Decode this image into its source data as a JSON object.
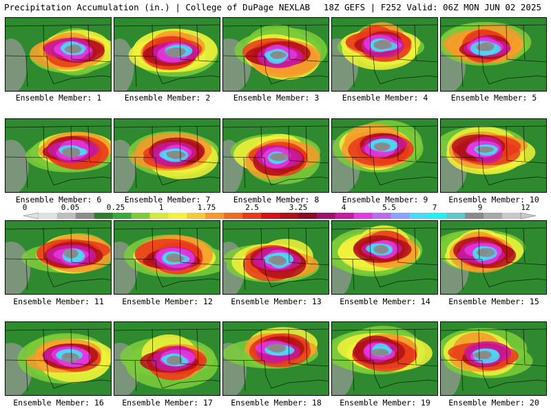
{
  "header": {
    "left": "Precipitation Accumulation (in.) | College of DuPage NEXLAB",
    "right": "18Z GEFS | F252 Valid: 06Z MON JUN 02 2025"
  },
  "panels": [
    {
      "label": "Ensemble Member: 1"
    },
    {
      "label": "Ensemble Member: 2"
    },
    {
      "label": "Ensemble Member: 3"
    },
    {
      "label": "Ensemble Member: 4"
    },
    {
      "label": "Ensemble Member: 5"
    },
    {
      "label": "Ensemble Member: 6"
    },
    {
      "label": "Ensemble Member: 7"
    },
    {
      "label": "Ensemble Member: 8"
    },
    {
      "label": "Ensemble Member: 9"
    },
    {
      "label": "Ensemble Member: 10"
    },
    {
      "label": "Ensemble Member: 11"
    },
    {
      "label": "Ensemble Member: 12"
    },
    {
      "label": "Ensemble Member: 13"
    },
    {
      "label": "Ensemble Member: 14"
    },
    {
      "label": "Ensemble Member: 15"
    },
    {
      "label": "Ensemble Member: 16"
    },
    {
      "label": "Ensemble Member: 17"
    },
    {
      "label": "Ensemble Member: 18"
    },
    {
      "label": "Ensemble Member: 19"
    },
    {
      "label": "Ensemble Member: 20"
    }
  ],
  "legend": {
    "labels": [
      "0",
      "0.05",
      "0.25",
      "1",
      "1.75",
      "2.5",
      "3.25",
      "4",
      "5.5",
      "7",
      "9",
      "12"
    ],
    "colors": [
      "#e0e0e0",
      "#bdbdbd",
      "#8c8c8c",
      "#2f7f2f",
      "#3aa83a",
      "#7ccc3a",
      "#d4e83a",
      "#f2f23a",
      "#f6c93a",
      "#f59a2a",
      "#ef6a1f",
      "#e63a1a",
      "#d41414",
      "#b0101a",
      "#8a0a28",
      "#a0106a",
      "#c81a9e",
      "#e23ae0",
      "#b86cf0",
      "#8aa2ff",
      "#4ad8f6",
      "#20f0f0",
      "#5cc8c8",
      "#8a8a8a",
      "#a8a8a8",
      "#c8c8c8"
    ]
  }
}
